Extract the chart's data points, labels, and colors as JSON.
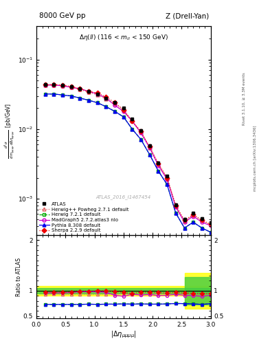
{
  "title_left": "8000 GeV pp",
  "title_right": "Z (Drell-Yan)",
  "annotation": "Δη(ll) (116 < m_{ll} < 150 GeV)",
  "watermark": "ATLAS_2016_I1467454",
  "right_label_top": "Rivet 3.1.10, ≥ 3.3M events",
  "right_label_bottom": "mcplots.cern.ch [arXiv:1306.3436]",
  "ylabel_ratio": "Ratio to ATLAS",
  "x_data": [
    0.15,
    0.3,
    0.45,
    0.6,
    0.75,
    0.9,
    1.05,
    1.2,
    1.35,
    1.5,
    1.65,
    1.8,
    1.95,
    2.1,
    2.25,
    2.4,
    2.55,
    2.7,
    2.85,
    3.0
  ],
  "atlas": [
    0.044,
    0.044,
    0.043,
    0.041,
    0.038,
    0.035,
    0.032,
    0.028,
    0.024,
    0.02,
    0.014,
    0.0096,
    0.0058,
    0.0033,
    0.0021,
    0.00082,
    0.0005,
    0.00062,
    0.00052,
    0.00045
  ],
  "atlas_err": [
    0.0015,
    0.0015,
    0.0015,
    0.0014,
    0.0013,
    0.0012,
    0.0011,
    0.001,
    0.0009,
    0.0007,
    0.0005,
    0.00035,
    0.00022,
    0.00013,
    9e-05,
    3.5e-05,
    2.5e-05,
    3e-05,
    2.5e-05,
    2e-05
  ],
  "herwig_powheg": [
    0.043,
    0.043,
    0.042,
    0.04,
    0.037,
    0.034,
    0.031,
    0.027,
    0.023,
    0.019,
    0.013,
    0.009,
    0.0054,
    0.0031,
    0.002,
    0.00078,
    0.00047,
    0.00058,
    0.00049,
    0.00042
  ],
  "herwig": [
    0.032,
    0.032,
    0.031,
    0.03,
    0.028,
    0.026,
    0.024,
    0.021,
    0.018,
    0.015,
    0.01,
    0.0071,
    0.0043,
    0.0025,
    0.0016,
    0.00062,
    0.00038,
    0.00046,
    0.00038,
    0.00033
  ],
  "madgraph": [
    0.043,
    0.043,
    0.042,
    0.04,
    0.038,
    0.035,
    0.032,
    0.028,
    0.022,
    0.018,
    0.013,
    0.0088,
    0.0054,
    0.003,
    0.0019,
    0.00076,
    0.00046,
    0.00056,
    0.00046,
    0.00041
  ],
  "pythia": [
    0.032,
    0.032,
    0.031,
    0.03,
    0.028,
    0.026,
    0.024,
    0.021,
    0.018,
    0.015,
    0.01,
    0.0071,
    0.0043,
    0.0025,
    0.0016,
    0.00062,
    0.00038,
    0.00046,
    0.00038,
    0.00033
  ],
  "sherpa": [
    0.044,
    0.044,
    0.043,
    0.041,
    0.038,
    0.035,
    0.033,
    0.029,
    0.024,
    0.019,
    0.013,
    0.0093,
    0.0056,
    0.0032,
    0.002,
    0.0008,
    0.00049,
    0.00059,
    0.00049,
    0.00043
  ],
  "ratio_herwig_powheg": [
    0.93,
    0.94,
    0.93,
    0.935,
    0.935,
    0.93,
    0.93,
    0.935,
    0.935,
    0.94,
    0.93,
    0.935,
    0.935,
    0.935,
    0.94,
    0.942,
    0.935,
    0.935,
    0.935,
    0.94
  ],
  "ratio_herwig": [
    0.73,
    0.73,
    0.73,
    0.73,
    0.73,
    0.735,
    0.73,
    0.735,
    0.735,
    0.74,
    0.735,
    0.74,
    0.735,
    0.735,
    0.74,
    0.748,
    0.745,
    0.74,
    0.73,
    0.745
  ],
  "ratio_madgraph": [
    0.96,
    0.96,
    0.96,
    0.965,
    0.98,
    0.98,
    0.98,
    0.97,
    0.91,
    0.89,
    0.93,
    0.915,
    0.925,
    0.905,
    0.91,
    0.928,
    0.91,
    0.905,
    0.89,
    0.91
  ],
  "ratio_pythia": [
    0.73,
    0.73,
    0.73,
    0.73,
    0.73,
    0.735,
    0.73,
    0.735,
    0.735,
    0.74,
    0.735,
    0.74,
    0.735,
    0.735,
    0.74,
    0.748,
    0.745,
    0.74,
    0.73,
    0.745
  ],
  "ratio_sherpa": [
    0.97,
    0.97,
    0.97,
    0.975,
    0.99,
    0.99,
    1.0,
    1.0,
    0.99,
    0.965,
    0.945,
    0.975,
    0.965,
    0.965,
    0.955,
    0.968,
    0.955,
    0.95,
    0.945,
    0.95
  ],
  "color_atlas": "#000000",
  "color_herwig_powheg": "#e06060",
  "color_herwig": "#00aa00",
  "color_madgraph": "#cc00cc",
  "color_pythia": "#0000ee",
  "color_sherpa": "#ee0000",
  "xlim": [
    0.0,
    3.0
  ],
  "ylim_main": [
    0.0003,
    0.3
  ],
  "ylim_ratio": [
    0.45,
    2.1
  ],
  "yticks_ratio": [
    0.5,
    1.0,
    2.0
  ]
}
